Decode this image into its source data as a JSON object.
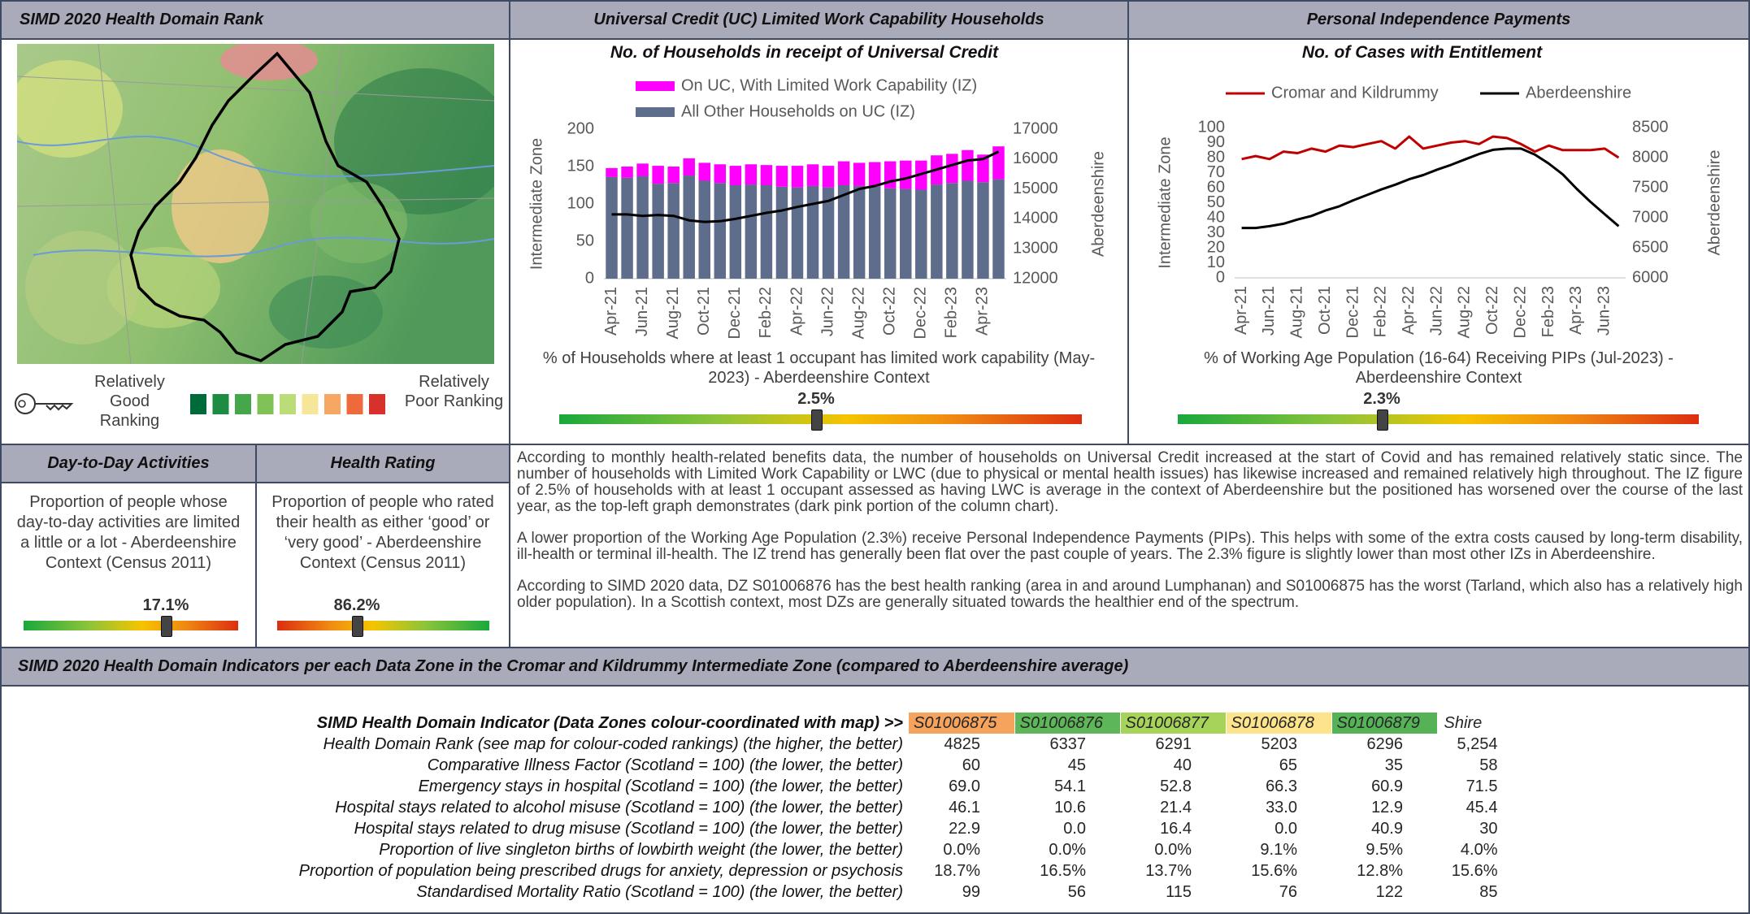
{
  "map_panel": {
    "title": "SIMD 2020 Health Domain Rank",
    "legend_good": "Relatively Good Ranking",
    "legend_poor": "Relatively Poor Ranking"
  },
  "uc_panel": {
    "title": "Universal Credit (UC) Limited Work Capability Households",
    "caption": "% of Households where at least 1 occupant has limited work capability (May-2023) - Aberdeenshire Context",
    "gauge_label": "2.5%"
  },
  "pip_panel": {
    "title": "Personal Independence Payments",
    "caption": "% of Working Age Population (16-64) Receiving PIPs (Jul-2023) - Aberdeenshire Context",
    "gauge_label": "2.3%"
  },
  "chart_data": [
    {
      "type": "bar",
      "stacked": true,
      "title": "No. of Households in receipt of Universal Credit",
      "y_label": "Intermediate Zone",
      "y2_label": "Aberdeenshire",
      "categories": [
        "Apr-21",
        null,
        "Jun-21",
        null,
        "Aug-21",
        null,
        "Oct-21",
        null,
        "Dec-21",
        null,
        "Feb-22",
        null,
        "Apr-22",
        null,
        "Jun-22",
        null,
        "Aug-22",
        null,
        "Oct-22",
        null,
        "Dec-22",
        null,
        "Feb-23",
        null,
        "Apr-23",
        null
      ],
      "series": [
        {
          "name": "All Other Households on UC (IZ)",
          "color": "#5e6d8b",
          "values": [
            136,
            135,
            137,
            127,
            128,
            138,
            131,
            128,
            125,
            126,
            125,
            123,
            122,
            124,
            122,
            125,
            124,
            123,
            121,
            120,
            119,
            126,
            128,
            131,
            129,
            133
          ]
        },
        {
          "name": "On UC, With Limited Work Capability (IZ)",
          "color": "#ff00ff",
          "values": [
            12,
            15,
            17,
            24,
            22,
            23,
            24,
            25,
            26,
            27,
            27,
            28,
            29,
            29,
            29,
            32,
            31,
            33,
            36,
            38,
            39,
            39,
            39,
            41,
            37,
            44
          ]
        },
        {
          "type": "line",
          "axis": "y2",
          "color": "#000000",
          "values": [
            14150,
            14150,
            14100,
            14130,
            14100,
            13950,
            13900,
            13920,
            14000,
            14100,
            14200,
            14280,
            14400,
            14500,
            14600,
            14800,
            15000,
            15100,
            15250,
            15350,
            15500,
            15650,
            15800,
            15950,
            16000,
            16250
          ]
        }
      ],
      "ylim": [
        0,
        200
      ],
      "yticks": [
        0,
        50,
        100,
        150,
        200
      ],
      "y2lim": [
        12000,
        17000
      ],
      "y2ticks": [
        12000,
        13000,
        14000,
        15000,
        16000,
        17000
      ]
    },
    {
      "type": "line",
      "title": "No. of Cases with Entitlement",
      "y_label": "Intermediate Zone",
      "y2_label": "Aberdeenshire",
      "categories": [
        "Apr-21",
        null,
        "Jun-21",
        null,
        "Aug-21",
        null,
        "Oct-21",
        null,
        "Dec-21",
        null,
        "Feb-22",
        null,
        "Apr-22",
        null,
        "Jun-22",
        null,
        "Aug-22",
        null,
        "Oct-22",
        null,
        "Dec-22",
        null,
        "Feb-23",
        null,
        "Apr-23",
        null,
        "Jun-23",
        null
      ],
      "series": [
        {
          "name": "Cromar and Kildrummy",
          "color": "#c00000",
          "values": [
            79,
            81,
            79,
            84,
            83,
            86,
            84,
            88,
            87,
            89,
            91,
            86,
            94,
            86,
            88,
            90,
            91,
            89,
            94,
            93,
            89,
            84,
            88,
            85,
            85,
            85,
            86,
            80
          ]
        },
        {
          "name": "Aberdeenshire",
          "color": "#000000",
          "axis": "y2",
          "values": [
            6830,
            6830,
            6860,
            6900,
            6970,
            7030,
            7120,
            7190,
            7290,
            7380,
            7470,
            7550,
            7640,
            7710,
            7800,
            7880,
            7970,
            8060,
            8130,
            8150,
            8150,
            8050,
            7900,
            7720,
            7480,
            7260,
            7060,
            6860
          ]
        }
      ],
      "ylim": [
        0,
        100
      ],
      "yticks": [
        0,
        10,
        20,
        30,
        40,
        50,
        60,
        70,
        80,
        90,
        100
      ],
      "y2lim": [
        6000,
        8500
      ],
      "y2ticks": [
        6000,
        6500,
        7000,
        7500,
        8000,
        8500
      ]
    }
  ],
  "day_panel": {
    "title": "Day-to-Day Activities",
    "text": "Proportion of people whose day-to-day activities are limited a little or a lot - Aberdeenshire Context (Census 2011)",
    "gauge_label": "17.1%"
  },
  "health_panel": {
    "title": "Health Rating",
    "text": "Proportion of people who rated their health as either ‘good’ or ‘very good’ - Aberdeenshire Context (Census 2011)",
    "gauge_label": "86.2%"
  },
  "commentary": [
    "According to monthly health-related benefits data, the number of households on Universal Credit increased at the start of Covid and has remained relatively static since.  The number of households with Limited Work Capability or LWC (due to physical or mental health issues) has likewise increased and remained relatively high throughout.  The IZ figure of 2.5% of households with at least 1 occupant assessed as having LWC is average in the context of Aberdeenshire but the positioned has worsened over the course of the last year, as the top-left graph demonstrates (dark pink portion of the column chart).",
    "A lower proportion of the Working Age Population (2.3%) receive Personal Independence Payments (PIPs).  This helps with some of the extra costs caused by long-term disability, ill-health or terminal ill-health.  The IZ trend has generally been flat over the past couple of years. The 2.3% figure is slightly lower than most other IZs in Aberdeenshire.",
    "According to SIMD 2020 data, DZ S01006876 has the best health ranking (area in and around Lumphanan) and S01006875 has the worst (Tarland, which also has a relatively high older population).  In a Scottish context, most DZs are generally situated towards the healthier end of the spectrum."
  ],
  "table": {
    "title": "SIMD 2020 Health Domain Indicators per each Data Zone in the Cromar and Kildrummy Intermediate Zone (compared to Aberdeenshire average)",
    "header": [
      "SIMD Health Domain Indicator (Data Zones colour-coordinated with map) >>",
      "S01006875",
      "S01006876",
      "S01006877",
      "S01006878",
      "S01006879",
      "Shire"
    ],
    "rows": [
      [
        "Health Domain Rank (see map for colour-coded rankings) (the higher, the better)",
        "4825",
        "6337",
        "6291",
        "5203",
        "6296",
        "5,254"
      ],
      [
        "Comparative Illness Factor (Scotland = 100) (the lower, the better)",
        "60",
        "45",
        "40",
        "65",
        "35",
        "58"
      ],
      [
        "Emergency stays in hospital (Scotland = 100) (the lower, the better)",
        "69.0",
        "54.1",
        "52.8",
        "66.3",
        "60.9",
        "71.5"
      ],
      [
        "Hospital stays related to alcohol misuse (Scotland = 100) (the lower, the better)",
        "46.1",
        "10.6",
        "21.4",
        "33.0",
        "12.9",
        "45.4"
      ],
      [
        "Hospital stays related to drug misuse (Scotland = 100) (the lower, the better)",
        "22.9",
        "0.0",
        "16.4",
        "0.0",
        "40.9",
        "30"
      ],
      [
        "Proportion of live singleton births of lowbirth weight (the lower, the better)",
        "0.0%",
        "0.0%",
        "0.0%",
        "9.1%",
        "9.5%",
        "4.0%"
      ],
      [
        "Proportion of population being prescribed drugs for anxiety, depression or psychosis",
        "18.7%",
        "16.5%",
        "13.7%",
        "15.6%",
        "12.8%",
        "15.6%"
      ],
      [
        "Standardised Mortality Ratio (Scotland = 100) (the lower, the better)",
        "99",
        "56",
        "115",
        "76",
        "122",
        "85"
      ]
    ]
  }
}
